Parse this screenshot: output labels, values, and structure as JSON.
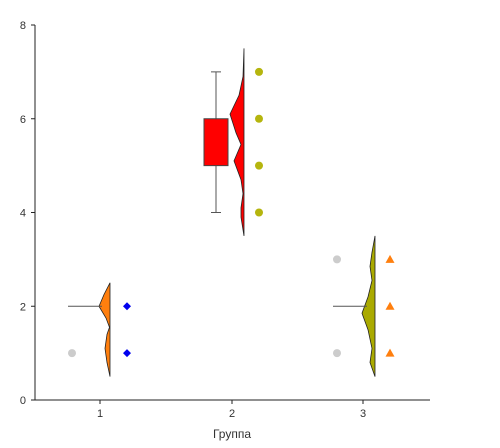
{
  "chart_data": {
    "type": "raincloud",
    "title": "",
    "xlabel": "Группа",
    "ylabel": "",
    "categories": [
      "1",
      "2",
      "3"
    ],
    "ylim": [
      0,
      8
    ],
    "yticks": [
      "0",
      "2",
      "4",
      "6",
      "8"
    ],
    "grid": false,
    "groups": [
      {
        "category": "1",
        "color": "#FF7F0E",
        "box": {
          "whisker_low": 2,
          "q1": 2,
          "median": 2,
          "q3": 2,
          "whisker_high": 2
        },
        "density_range": [
          0.5,
          2.5
        ],
        "left_points": {
          "values": [
            1
          ],
          "color": "#CCCCCC",
          "marker": "circle"
        },
        "right_points": {
          "values": [
            1,
            2
          ],
          "color": "#0000EE",
          "marker": "diamond"
        }
      },
      {
        "category": "2",
        "color": "#FF0000",
        "box": {
          "whisker_low": 4,
          "q1": 5,
          "median": 5.5,
          "q3": 6,
          "whisker_high": 7
        },
        "density_range": [
          3.5,
          7.5
        ],
        "left_points": {
          "values": [],
          "color": "#CCCCCC",
          "marker": "circle"
        },
        "right_points": {
          "values": [
            4,
            5,
            6,
            7
          ],
          "color": "#B5B50E",
          "marker": "circle"
        }
      },
      {
        "category": "3",
        "color": "#AAAA00",
        "box": {
          "whisker_low": 2,
          "q1": 2,
          "median": 2,
          "q3": 2,
          "whisker_high": 2
        },
        "density_range": [
          0.5,
          3.5
        ],
        "left_points": {
          "values": [
            1,
            3
          ],
          "color": "#CCCCCC",
          "marker": "circle"
        },
        "right_points": {
          "values": [
            1,
            2,
            3
          ],
          "color": "#FF7F0E",
          "marker": "triangle"
        }
      }
    ]
  }
}
